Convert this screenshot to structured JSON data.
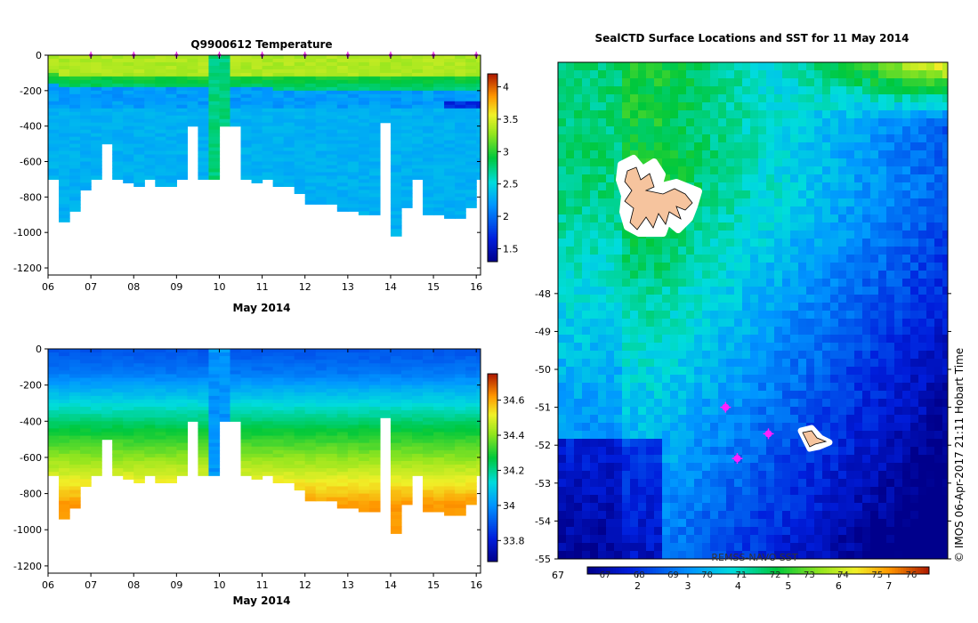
{
  "watermark": "© IMOS 06-Apr-2017 21:11 Hobart Time",
  "chart_data": [
    {
      "type": "heatmap",
      "title": "Q9900612  Temperature",
      "xlabel": "May 2014",
      "ylabel": "",
      "x_ticks": [
        "06",
        "07",
        "08",
        "09",
        "10",
        "11",
        "12",
        "13",
        "14",
        "15",
        "16"
      ],
      "xlim": [
        6,
        16.1
      ],
      "y_ticks": [
        0,
        -200,
        -400,
        -600,
        -800,
        -1000,
        -1200
      ],
      "ylim": [
        -1240,
        0
      ],
      "colorbar_ticks": [
        1.5,
        2,
        2.5,
        3,
        3.5,
        4
      ],
      "colorbar_range": [
        1.3,
        4.2
      ],
      "profile_markers": [
        7,
        8,
        9,
        10,
        11,
        12,
        13,
        14,
        15,
        16
      ],
      "profile_times": [
        6.0,
        6.25,
        6.5,
        6.75,
        7.0,
        7.25,
        7.5,
        7.75,
        8.0,
        8.25,
        8.5,
        8.75,
        9.0,
        9.25,
        9.5,
        9.75,
        10.0,
        10.25,
        10.5,
        10.75,
        11.0,
        11.25,
        11.5,
        11.75,
        12.0,
        12.25,
        12.5,
        12.75,
        13.0,
        13.25,
        13.5,
        13.75,
        14.0,
        14.25,
        14.5,
        14.75,
        15.0,
        15.25,
        15.5,
        15.75,
        16.0,
        16.1
      ],
      "profile_max_depth": [
        700,
        940,
        870,
        750,
        690,
        500,
        690,
        720,
        740,
        700,
        740,
        740,
        700,
        390,
        700,
        700,
        400,
        400,
        700,
        720,
        700,
        730,
        740,
        780,
        830,
        830,
        830,
        880,
        880,
        900,
        900,
        380,
        1010,
        850,
        700,
        900,
        900,
        920,
        920,
        860,
        700
      ],
      "anomaly_columns": [
        {
          "x0": 9.75,
          "x1": 10.25,
          "value": 2.75
        }
      ]
    },
    {
      "type": "heatmap",
      "title": "",
      "xlabel": "May 2014",
      "ylabel": "",
      "x_ticks": [
        "06",
        "07",
        "08",
        "09",
        "10",
        "11",
        "12",
        "13",
        "14",
        "15",
        "16"
      ],
      "xlim": [
        6,
        16.1
      ],
      "y_ticks": [
        0,
        -200,
        -400,
        -600,
        -800,
        -1000,
        -1200
      ],
      "ylim": [
        -1240,
        0
      ],
      "colorbar_ticks": [
        33.8,
        34,
        34.2,
        34.4,
        34.6
      ],
      "colorbar_range": [
        33.68,
        34.75
      ],
      "anomaly_columns": [
        {
          "x0": 9.75,
          "x1": 10.25,
          "value": 34.0
        }
      ]
    },
    {
      "type": "heatmap",
      "title": "SealCTD Surface Locations and SST for 11 May 2014",
      "xlabel": "",
      "ylabel": "",
      "y_ticks": [
        -48,
        -49,
        -50,
        -51,
        -52,
        -53,
        -54,
        -55
      ],
      "ylim": [
        -55,
        -41.9
      ],
      "colorbar_label": "REMSS-NAVO SST",
      "colorbar_ticks": [
        2,
        3,
        4,
        5,
        6,
        7
      ],
      "colorbar_ticks_secondary": [
        "67",
        "68",
        "69",
        "70",
        "71",
        "72",
        "73",
        "74",
        "75",
        "76"
      ],
      "colorbar_range": [
        1.0,
        7.8
      ],
      "seal_locations": [
        {
          "lon": 0.43,
          "lat": -51.0
        },
        {
          "lon": 0.54,
          "lat": -51.7
        },
        {
          "lon": 0.46,
          "lat": -52.35
        }
      ],
      "land_patches": [
        "island-north",
        "island-south"
      ]
    }
  ]
}
